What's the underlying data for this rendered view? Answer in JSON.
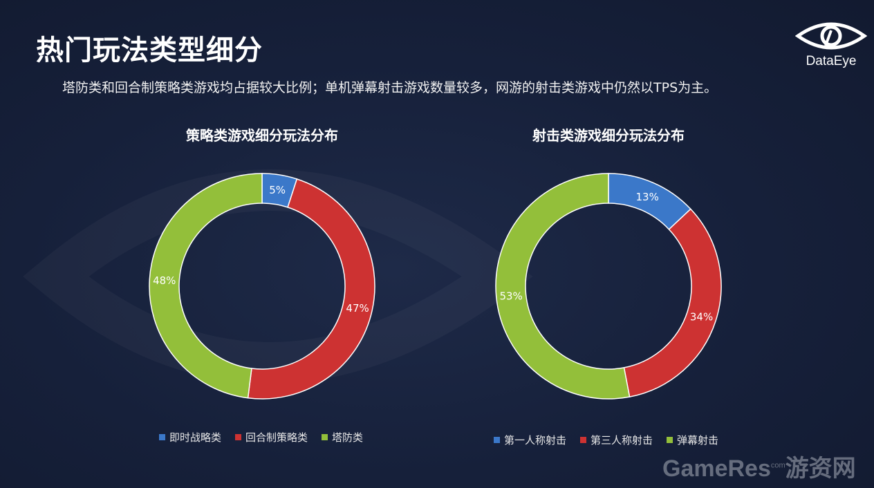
{
  "page": {
    "title": "热门玩法类型细分",
    "subtitle": "塔防类和回合制策略类游戏均占据较大比例；单机弹幕射击游戏数量较多，网游的射击类游戏中仍然以TPS为主。"
  },
  "brand": {
    "logo_text": "DataEye",
    "watermark_main": "GameRes",
    "watermark_com": "com",
    "watermark_cn": "游资网"
  },
  "colors": {
    "blue": "#3b78c9",
    "red": "#cd3232",
    "green": "#93bf3a"
  },
  "chart_data": [
    {
      "type": "pie",
      "title": "策略类游戏细分玩法分布",
      "donut": true,
      "categories": [
        "即时战略类",
        "回合制策略类",
        "塔防类"
      ],
      "values": [
        5,
        47,
        48
      ],
      "labels": [
        "5%",
        "47%",
        "48%"
      ],
      "colors": [
        "#3b78c9",
        "#cd3232",
        "#93bf3a"
      ],
      "legend": "bottom"
    },
    {
      "type": "pie",
      "title": "射击类游戏细分玩法分布",
      "donut": true,
      "categories": [
        "第一人称射击",
        "第三人称射击",
        "弹幕射击"
      ],
      "values": [
        13,
        34,
        53
      ],
      "labels": [
        "13%",
        "34%",
        "53%"
      ],
      "colors": [
        "#3b78c9",
        "#cd3232",
        "#93bf3a"
      ],
      "legend": "bottom"
    }
  ]
}
